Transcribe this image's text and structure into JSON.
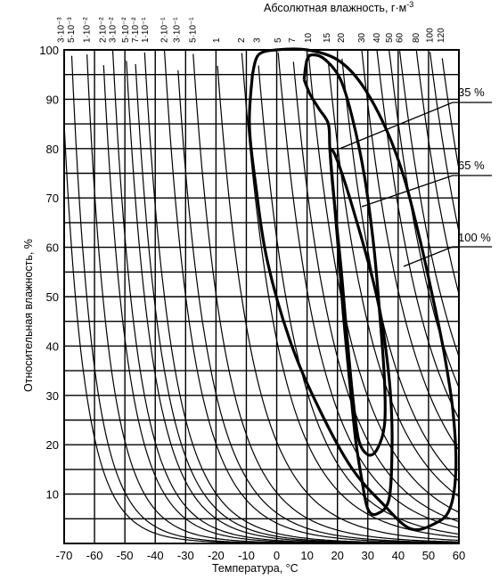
{
  "chart_data": {
    "type": "line",
    "title": "",
    "xlabel": "Температура, °С",
    "ylabel": "Относительная влажность, %",
    "top_axis_label": "Абсолютная влажность, г·м",
    "top_axis_label_sup": "-3",
    "xlim": [
      -70,
      60
    ],
    "ylim": [
      0,
      100
    ],
    "x_ticks": [
      "-70",
      "-60",
      "-50",
      "-40",
      "-30",
      "-20",
      "-10",
      "0",
      "10",
      "20",
      "30",
      "40",
      "50",
      "60"
    ],
    "y_ticks": [
      "10",
      "20",
      "30",
      "40",
      "50",
      "60",
      "70",
      "80",
      "90",
      "100"
    ],
    "x_tick_values": [
      -70,
      -60,
      -50,
      -40,
      -30,
      -20,
      -10,
      0,
      10,
      20,
      30,
      40,
      50,
      60
    ],
    "y_tick_values": [
      10,
      20,
      30,
      40,
      50,
      60,
      70,
      80,
      90,
      100
    ],
    "absolute_humidity_curves": [
      {
        "label": "3·10⁻³",
        "value": 0.003
      },
      {
        "label": "5·10⁻³",
        "value": 0.005
      },
      {
        "label": "1·10⁻²",
        "value": 0.01
      },
      {
        "label": "2·10⁻²",
        "value": 0.02
      },
      {
        "label": "3·10⁻²",
        "value": 0.03
      },
      {
        "label": "5·10⁻²",
        "value": 0.05
      },
      {
        "label": "7·10⁻²",
        "value": 0.07
      },
      {
        "label": "1·10⁻¹",
        "value": 0.1
      },
      {
        "label": "2·10⁻¹",
        "value": 0.2
      },
      {
        "label": "3·10⁻¹",
        "value": 0.3
      },
      {
        "label": "5·10⁻¹",
        "value": 0.5
      },
      {
        "label": "1",
        "value": 1
      },
      {
        "label": "2",
        "value": 2
      },
      {
        "label": "3",
        "value": 3
      },
      {
        "label": "5",
        "value": 5
      },
      {
        "label": "7",
        "value": 7
      },
      {
        "label": "10",
        "value": 10
      },
      {
        "label": "15",
        "value": 15
      },
      {
        "label": "20",
        "value": 20
      },
      {
        "label": "30",
        "value": 30
      },
      {
        "label": "40",
        "value": 40
      },
      {
        "label": "50",
        "value": 50
      },
      {
        "label": "60",
        "value": 60
      },
      {
        "label": "80",
        "value": 80
      },
      {
        "label": "100",
        "value": 100
      },
      {
        "label": "120",
        "value": 120
      }
    ],
    "contours": [
      {
        "label": "35 %",
        "points": [
          [
            9,
            94
          ],
          [
            10,
            98
          ],
          [
            12,
            99
          ],
          [
            16,
            98
          ],
          [
            21,
            94
          ],
          [
            25,
            86
          ],
          [
            29,
            74
          ],
          [
            32,
            60
          ],
          [
            34,
            46
          ],
          [
            35.5,
            33
          ],
          [
            35.5,
            24
          ],
          [
            33,
            19
          ],
          [
            30,
            18
          ],
          [
            27,
            21
          ],
          [
            25,
            30
          ],
          [
            23,
            43
          ],
          [
            21,
            57
          ],
          [
            18.5,
            72
          ],
          [
            17.5,
            80
          ],
          [
            17,
            85
          ],
          [
            14,
            88
          ],
          [
            11,
            91
          ],
          [
            9,
            94
          ]
        ]
      },
      {
        "label": "65 %",
        "points": [
          [
            17.5,
            80
          ],
          [
            19,
            79
          ],
          [
            22,
            74
          ],
          [
            26,
            66
          ],
          [
            31,
            55
          ],
          [
            34,
            47
          ],
          [
            36,
            39
          ],
          [
            37.5,
            30
          ],
          [
            38,
            20
          ],
          [
            37,
            9
          ],
          [
            33,
            6
          ],
          [
            30,
            7
          ],
          [
            28,
            13
          ],
          [
            26,
            21
          ],
          [
            24,
            33
          ],
          [
            22,
            46
          ],
          [
            20.5,
            58
          ],
          [
            19,
            69
          ],
          [
            18,
            76
          ],
          [
            17.5,
            80
          ]
        ]
      },
      {
        "label": "100 %",
        "points": [
          [
            -8,
            95
          ],
          [
            -6,
            99
          ],
          [
            0,
            100
          ],
          [
            10,
            100
          ],
          [
            20,
            98
          ],
          [
            28,
            93
          ],
          [
            36,
            84
          ],
          [
            42,
            74
          ],
          [
            47,
            62
          ],
          [
            51,
            51
          ],
          [
            55,
            39
          ],
          [
            58,
            27
          ],
          [
            59,
            15
          ],
          [
            57,
            7
          ],
          [
            52,
            4
          ],
          [
            44,
            3
          ],
          [
            35,
            8
          ],
          [
            25,
            15
          ],
          [
            15,
            26
          ],
          [
            5,
            40
          ],
          [
            -3,
            57
          ],
          [
            -7,
            73
          ],
          [
            -9,
            85
          ],
          [
            -8,
            95
          ]
        ]
      }
    ]
  }
}
